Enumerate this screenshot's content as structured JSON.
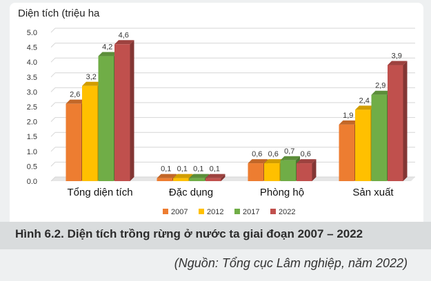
{
  "chart_data": {
    "type": "bar",
    "ylabel": "Diện tích (triệu ha",
    "ylim": [
      0,
      5
    ],
    "yticks": [
      "0.0",
      "0.5",
      "1.0",
      "1.5",
      "2.0",
      "2.5",
      "3.0",
      "3.5",
      "4.0",
      "4.5",
      "5.0"
    ],
    "categories": [
      "Tổng diện tích",
      "Đặc dụng",
      "Phòng hộ",
      "Sản xuất"
    ],
    "series": [
      {
        "name": "2007",
        "color": "#ed7d31",
        "values": [
          2.6,
          0.1,
          0.6,
          1.9
        ],
        "labels": [
          "2,6",
          "0,1",
          "0,6",
          "1,9"
        ]
      },
      {
        "name": "2012",
        "color": "#ffc000",
        "values": [
          3.2,
          0.1,
          0.6,
          2.4
        ],
        "labels": [
          "3,2",
          "0,1",
          "0,6",
          "2,4"
        ]
      },
      {
        "name": "2017",
        "color": "#70ad47",
        "values": [
          4.2,
          0.1,
          0.7,
          2.9
        ],
        "labels": [
          "4,2",
          "0,1",
          "0,7",
          "2,9"
        ]
      },
      {
        "name": "2022",
        "color": "#c0504d",
        "values": [
          4.6,
          0.1,
          0.6,
          3.9
        ],
        "labels": [
          "4,6",
          "0,1",
          "0,6",
          "3,9"
        ]
      }
    ],
    "legend_position": "bottom",
    "grid": true
  },
  "caption": "Hình 6.2. Diện tích trồng rừng ở nước ta giai đoạn 2007 – 2022",
  "source": "(Nguồn: Tổng cục Lâm nghiệp, năm 2022)"
}
